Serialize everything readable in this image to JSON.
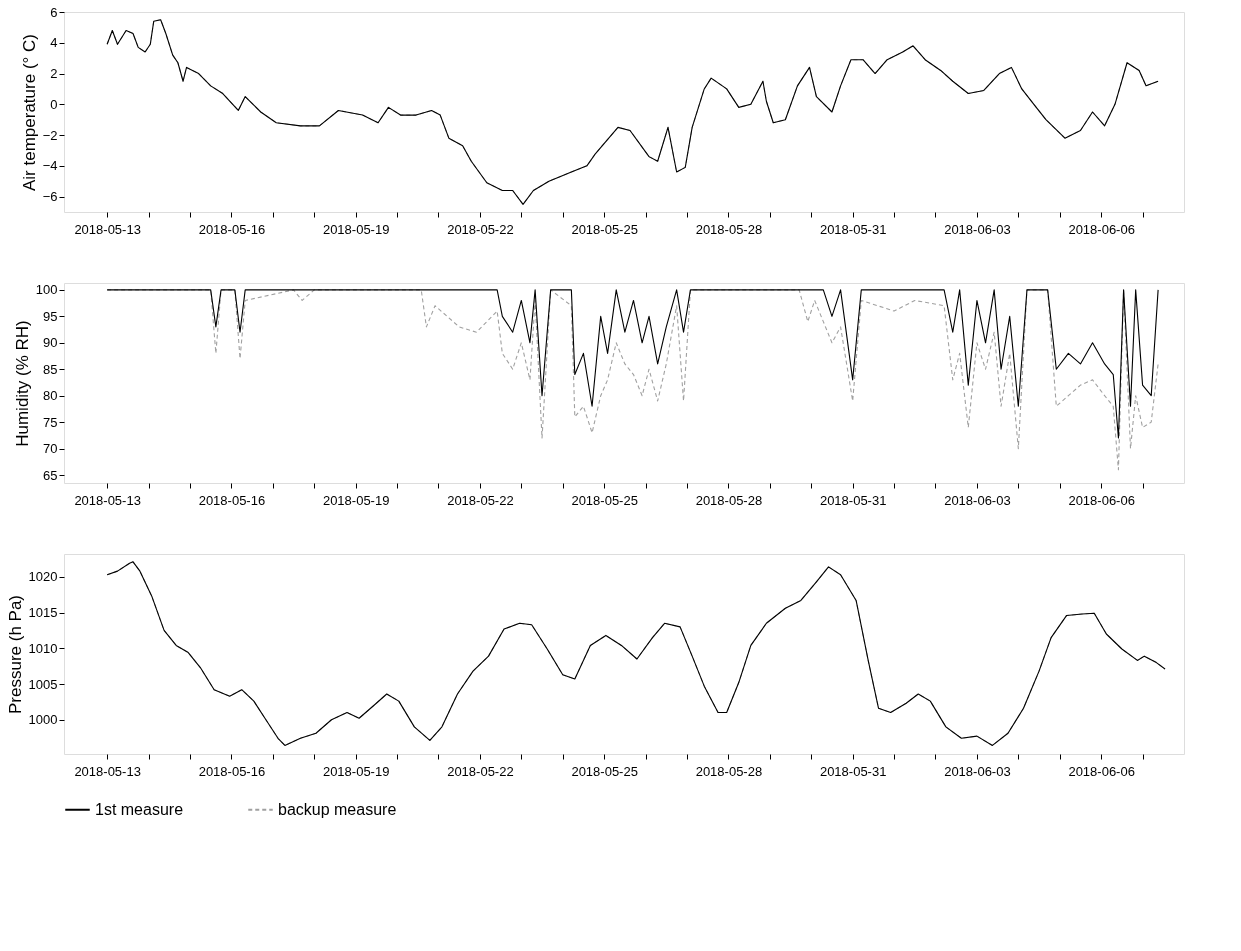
{
  "chart_data": [
    {
      "type": "line",
      "ylabel": "Air temperature (° C)",
      "grid": false,
      "legend": false,
      "x": [
        "2018-05-13T00:00",
        "2018-05-13T03:00",
        "2018-05-13T06:00",
        "2018-05-13T11:00",
        "2018-05-13T15:00",
        "2018-05-13T18:00",
        "2018-05-13T22:00",
        "2018-05-14T01:00",
        "2018-05-14T03:00",
        "2018-05-14T07:00",
        "2018-05-14T10:00",
        "2018-05-14T14:00",
        "2018-05-14T17:00",
        "2018-05-14T20:00",
        "2018-05-14T22:00",
        "2018-05-15T05:00",
        "2018-05-15T12:00",
        "2018-05-15T19:00",
        "2018-05-16T04:00",
        "2018-05-16T08:00",
        "2018-05-16T17:00",
        "2018-05-17T02:00",
        "2018-05-17T16:00",
        "2018-05-18T03:00",
        "2018-05-18T14:00",
        "2018-05-19T04:00",
        "2018-05-19T13:00",
        "2018-05-19T19:00",
        "2018-05-20T02:00",
        "2018-05-20T11:00",
        "2018-05-20T20:00",
        "2018-05-21T01:00",
        "2018-05-21T06:00",
        "2018-05-21T14:00",
        "2018-05-21T19:00",
        "2018-05-22T04:00",
        "2018-05-22T13:00",
        "2018-05-22T19:00",
        "2018-05-23T01:00",
        "2018-05-23T07:00",
        "2018-05-23T16:00",
        "2018-05-24T05:00",
        "2018-05-24T14:00",
        "2018-05-24T19:00",
        "2018-05-25T08:00",
        "2018-05-25T15:00",
        "2018-05-26T02:00",
        "2018-05-26T07:00",
        "2018-05-26T13:00",
        "2018-05-26T18:00",
        "2018-05-26T23:00",
        "2018-05-27T03:00",
        "2018-05-27T10:00",
        "2018-05-27T14:00",
        "2018-05-27T23:00",
        "2018-05-28T06:00",
        "2018-05-28T13:00",
        "2018-05-28T20:00",
        "2018-05-28T22:00",
        "2018-05-29T02:00",
        "2018-05-29T09:00",
        "2018-05-29T16:00",
        "2018-05-29T23:00",
        "2018-05-30T03:00",
        "2018-05-30T12:00",
        "2018-05-30T17:00",
        "2018-05-30T23:00",
        "2018-05-31T06:00",
        "2018-05-31T13:00",
        "2018-05-31T20:00",
        "2018-06-01T05:00",
        "2018-06-01T11:00",
        "2018-06-01T18:00",
        "2018-06-02T03:00",
        "2018-06-02T10:00",
        "2018-06-02T19:00",
        "2018-06-03T04:00",
        "2018-06-03T13:00",
        "2018-06-03T20:00",
        "2018-06-04T02:00",
        "2018-06-04T09:00",
        "2018-06-04T16:00",
        "2018-06-05T03:00",
        "2018-06-05T12:00",
        "2018-06-05T19:00",
        "2018-06-06T02:00",
        "2018-06-06T08:00",
        "2018-06-06T15:00",
        "2018-06-06T22:00",
        "2018-06-07T02:00",
        "2018-06-07T09:00"
      ],
      "series": [
        {
          "color": "#000000",
          "line_style": "solid",
          "values": [
            3.9,
            4.8,
            3.9,
            4.8,
            4.6,
            3.7,
            3.4,
            3.9,
            5.4,
            5.5,
            4.6,
            3.2,
            2.7,
            1.5,
            2.4,
            2.0,
            1.2,
            0.7,
            -0.4,
            0.5,
            -0.5,
            -1.2,
            -1.4,
            -1.4,
            -0.4,
            -0.7,
            -1.2,
            -0.2,
            -0.7,
            -0.7,
            -0.4,
            -0.7,
            -2.2,
            -2.7,
            -3.7,
            -5.1,
            -5.6,
            -5.6,
            -6.5,
            -5.6,
            -5.0,
            -4.4,
            -4.0,
            -3.2,
            -1.5,
            -1.7,
            -3.4,
            -3.7,
            -1.5,
            -4.4,
            -4.1,
            -1.5,
            1.0,
            1.7,
            1.0,
            -0.2,
            0.0,
            1.5,
            0.2,
            -1.2,
            -1.0,
            1.2,
            2.4,
            0.5,
            -0.5,
            1.2,
            2.9,
            2.9,
            2.0,
            2.9,
            3.4,
            3.8,
            2.9,
            2.2,
            1.5,
            0.7,
            0.9,
            2.0,
            2.4,
            1.0,
            0.0,
            -1.0,
            -2.2,
            -1.7,
            -0.5,
            -1.4,
            0.0,
            2.7,
            2.2,
            1.2,
            1.5
          ]
        },
        {
          "color": "#a0a0a0",
          "line_style": "dashed",
          "values": [
            3.9,
            4.8,
            3.9,
            4.8,
            4.6,
            3.7,
            3.4,
            3.9,
            5.4,
            5.5,
            4.6,
            3.2,
            2.7,
            1.5,
            2.4,
            2.0,
            1.2,
            0.7,
            -0.4,
            0.5,
            -0.5,
            -1.2,
            -1.4,
            -1.4,
            -0.4,
            -0.7,
            -1.2,
            -0.2,
            -0.7,
            -0.7,
            -0.4,
            -0.7,
            -2.2,
            -2.7,
            -3.7,
            -5.1,
            -5.6,
            -5.6,
            -6.5,
            -5.6,
            -5.0,
            -4.4,
            -4.0,
            -3.2,
            -1.5,
            -1.7,
            -3.4,
            -3.7,
            -1.5,
            -4.4,
            -4.1,
            -1.5,
            1.0,
            1.7,
            1.0,
            -0.2,
            0.0,
            1.5,
            0.2,
            -1.2,
            -1.0,
            1.2,
            2.4,
            0.5,
            -0.5,
            1.2,
            2.9,
            2.9,
            2.0,
            2.9,
            3.4,
            3.8,
            2.9,
            2.2,
            1.5,
            0.7,
            0.9,
            2.0,
            2.4,
            1.0,
            0.0,
            -1.0,
            -2.2,
            -1.7,
            -0.5,
            -1.4,
            0.0,
            2.7,
            2.2,
            1.2,
            1.5
          ]
        }
      ],
      "xlim": [
        "2018-05-11T23:00",
        "2018-06-08T00:00"
      ],
      "xticks": [
        "2018-05-13",
        {
          "value": "2018-05-14",
          "label": null
        },
        {
          "value": "2018-05-15",
          "label": null
        },
        "2018-05-16",
        {
          "value": "2018-05-17",
          "label": null
        },
        {
          "value": "2018-05-18",
          "label": null
        },
        "2018-05-19",
        {
          "value": "2018-05-20",
          "label": null
        },
        {
          "value": "2018-05-21",
          "label": null
        },
        "2018-05-22",
        {
          "value": "2018-05-23",
          "label": null
        },
        {
          "value": "2018-05-24",
          "label": null
        },
        "2018-05-25",
        {
          "value": "2018-05-26",
          "label": null
        },
        {
          "value": "2018-05-27",
          "label": null
        },
        "2018-05-28",
        {
          "value": "2018-05-29",
          "label": null
        },
        {
          "value": "2018-05-30",
          "label": null
        },
        "2018-05-31",
        {
          "value": "2018-06-01",
          "label": null
        },
        {
          "value": "2018-06-02",
          "label": null
        },
        "2018-06-03",
        {
          "value": "2018-06-04",
          "label": null
        },
        {
          "value": "2018-06-05",
          "label": null
        },
        "2018-06-06",
        {
          "value": "2018-06-07",
          "label": null
        }
      ],
      "ylim": [
        -7,
        6
      ],
      "yticks": [
        -6,
        -4,
        -2,
        0,
        2,
        4,
        6
      ]
    },
    {
      "type": "line",
      "ylabel": "Humidity (% RH)",
      "grid": false,
      "legend": false,
      "x": [
        "2018-05-13T00:00",
        "2018-05-15T12:00",
        "2018-05-15T15:00",
        "2018-05-15T18:00",
        "2018-05-16T02:00",
        "2018-05-16T05:00",
        "2018-05-16T08:00",
        "2018-05-17T12:00",
        "2018-05-17T17:00",
        "2018-05-18T00:00",
        "2018-05-20T14:00",
        "2018-05-20T17:00",
        "2018-05-20T22:00",
        "2018-05-21T12:00",
        "2018-05-21T22:00",
        "2018-05-22T10:00",
        "2018-05-22T13:00",
        "2018-05-22T19:00",
        "2018-05-23T00:00",
        "2018-05-23T05:00",
        "2018-05-23T08:00",
        "2018-05-23T12:00",
        "2018-05-23T17:00",
        "2018-05-24T05:00",
        "2018-05-24T07:00",
        "2018-05-24T12:00",
        "2018-05-24T17:00",
        "2018-05-24T22:00",
        "2018-05-25T02:00",
        "2018-05-25T07:00",
        "2018-05-25T12:00",
        "2018-05-25T17:00",
        "2018-05-25T22:00",
        "2018-05-26T02:00",
        "2018-05-26T07:00",
        "2018-05-26T12:00",
        "2018-05-26T18:00",
        "2018-05-26T22:00",
        "2018-05-27T02:00",
        "2018-05-29T17:00",
        "2018-05-29T22:00",
        "2018-05-30T02:00",
        "2018-05-30T07:00",
        "2018-05-30T12:00",
        "2018-05-30T17:00",
        "2018-05-31T00:00",
        "2018-05-31T05:00",
        "2018-06-01T00:00",
        "2018-06-01T12:00",
        "2018-06-02T05:00",
        "2018-06-02T10:00",
        "2018-06-02T14:00",
        "2018-06-02T19:00",
        "2018-06-03T00:00",
        "2018-06-03T05:00",
        "2018-06-03T10:00",
        "2018-06-03T14:00",
        "2018-06-03T19:00",
        "2018-06-04T00:00",
        "2018-06-04T05:00",
        "2018-06-04T17:00",
        "2018-06-04T22:00",
        "2018-06-05T05:00",
        "2018-06-05T12:00",
        "2018-06-05T19:00",
        "2018-06-06T02:00",
        "2018-06-06T07:00",
        "2018-06-06T10:00",
        "2018-06-06T13:00",
        "2018-06-06T17:00",
        "2018-06-06T20:00",
        "2018-06-07T00:00",
        "2018-06-07T05:00",
        "2018-06-07T09:00"
      ],
      "series": [
        {
          "color": "#000000",
          "line_style": "solid",
          "values": [
            100,
            100,
            93,
            100,
            100,
            92,
            100,
            100,
            100,
            100,
            100,
            100,
            100,
            100,
            100,
            100,
            95,
            92,
            98,
            90,
            100,
            80,
            100,
            100,
            84,
            88,
            78,
            95,
            88,
            100,
            92,
            98,
            90,
            95,
            86,
            93,
            100,
            92,
            100,
            100,
            100,
            100,
            100,
            95,
            100,
            83,
            100,
            100,
            100,
            100,
            92,
            100,
            82,
            98,
            90,
            100,
            85,
            95,
            78,
            100,
            100,
            85,
            88,
            86,
            90,
            86,
            84,
            72,
            100,
            78,
            100,
            82,
            80,
            100
          ]
        },
        {
          "color": "#a0a0a0",
          "line_style": "dashed",
          "values": [
            100,
            100,
            88,
            100,
            100,
            87,
            98,
            100,
            98,
            100,
            100,
            93,
            97,
            93,
            92,
            96,
            88,
            85,
            90,
            83,
            98,
            72,
            100,
            97,
            76,
            78,
            73,
            80,
            83,
            90,
            86,
            84,
            80,
            85,
            79,
            86,
            97,
            79,
            100,
            100,
            94,
            98,
            94,
            90,
            93,
            79,
            98,
            96,
            98,
            97,
            83,
            88,
            74,
            90,
            85,
            92,
            78,
            88,
            70,
            100,
            100,
            78,
            80,
            82,
            83,
            80,
            78,
            66,
            100,
            70,
            80,
            74,
            75,
            86
          ]
        }
      ],
      "xlim": [
        "2018-05-11T23:00",
        "2018-06-08T00:00"
      ],
      "xticks": [
        "2018-05-13",
        {
          "value": "2018-05-14",
          "label": null
        },
        {
          "value": "2018-05-15",
          "label": null
        },
        "2018-05-16",
        {
          "value": "2018-05-17",
          "label": null
        },
        {
          "value": "2018-05-18",
          "label": null
        },
        "2018-05-19",
        {
          "value": "2018-05-20",
          "label": null
        },
        {
          "value": "2018-05-21",
          "label": null
        },
        "2018-05-22",
        {
          "value": "2018-05-23",
          "label": null
        },
        {
          "value": "2018-05-24",
          "label": null
        },
        "2018-05-25",
        {
          "value": "2018-05-26",
          "label": null
        },
        {
          "value": "2018-05-27",
          "label": null
        },
        "2018-05-28",
        {
          "value": "2018-05-29",
          "label": null
        },
        {
          "value": "2018-05-30",
          "label": null
        },
        "2018-05-31",
        {
          "value": "2018-06-01",
          "label": null
        },
        {
          "value": "2018-06-02",
          "label": null
        },
        "2018-06-03",
        {
          "value": "2018-06-04",
          "label": null
        },
        {
          "value": "2018-06-05",
          "label": null
        },
        "2018-06-06",
        {
          "value": "2018-06-07",
          "label": null
        }
      ],
      "ylim": [
        63.5,
        101.3
      ],
      "yticks": [
        65,
        70,
        75,
        80,
        85,
        90,
        95,
        100
      ]
    },
    {
      "type": "line",
      "ylabel": "Pressure (h Pa)",
      "grid": false,
      "legend": "bottom",
      "x": [
        "2018-05-13T00:00",
        "2018-05-13T06:00",
        "2018-05-13T13:00",
        "2018-05-13T15:00",
        "2018-05-13T19:00",
        "2018-05-14T02:00",
        "2018-05-14T09:00",
        "2018-05-14T16:00",
        "2018-05-14T23:00",
        "2018-05-15T06:00",
        "2018-05-15T14:00",
        "2018-05-15T23:00",
        "2018-05-16T06:00",
        "2018-05-16T13:00",
        "2018-05-16T20:00",
        "2018-05-17T03:00",
        "2018-05-17T07:00",
        "2018-05-17T16:00",
        "2018-05-18T01:00",
        "2018-05-18T10:00",
        "2018-05-18T19:00",
        "2018-05-19T02:00",
        "2018-05-19T11:00",
        "2018-05-19T18:00",
        "2018-05-20T01:00",
        "2018-05-20T10:00",
        "2018-05-20T19:00",
        "2018-05-21T02:00",
        "2018-05-21T11:00",
        "2018-05-21T20:00",
        "2018-05-22T05:00",
        "2018-05-22T14:00",
        "2018-05-22T23:00",
        "2018-05-23T06:00",
        "2018-05-23T15:00",
        "2018-05-24T00:00",
        "2018-05-24T07:00",
        "2018-05-24T16:00",
        "2018-05-25T01:00",
        "2018-05-25T10:00",
        "2018-05-25T19:00",
        "2018-05-26T04:00",
        "2018-05-26T11:00",
        "2018-05-26T20:00",
        "2018-05-27T03:00",
        "2018-05-27T10:00",
        "2018-05-27T18:00",
        "2018-05-27T23:00",
        "2018-05-28T06:00",
        "2018-05-28T13:00",
        "2018-05-28T22:00",
        "2018-05-29T09:00",
        "2018-05-29T18:00",
        "2018-05-30T03:00",
        "2018-05-30T10:00",
        "2018-05-30T17:00",
        "2018-05-31T02:00",
        "2018-05-31T09:00",
        "2018-05-31T15:00",
        "2018-05-31T22:00",
        "2018-06-01T07:00",
        "2018-06-01T14:00",
        "2018-06-01T21:00",
        "2018-06-02T06:00",
        "2018-06-02T15:00",
        "2018-06-03T00:00",
        "2018-06-03T09:00",
        "2018-06-03T18:00",
        "2018-06-04T03:00",
        "2018-06-04T12:00",
        "2018-06-04T19:00",
        "2018-06-05T04:00",
        "2018-06-05T13:00",
        "2018-06-05T20:00",
        "2018-06-06T03:00",
        "2018-06-06T12:00",
        "2018-06-06T21:00",
        "2018-06-07T01:00",
        "2018-06-07T08:00",
        "2018-06-07T13:00"
      ],
      "series": [
        {
          "name": "1st measure",
          "color": "#000000",
          "line_style": "solid",
          "values": [
            1020.3,
            1020.8,
            1021.9,
            1022.1,
            1020.8,
            1017.2,
            1012.5,
            1010.4,
            1009.4,
            1007.3,
            1004.2,
            1003.3,
            1004.2,
            1002.6,
            1000.0,
            997.4,
            996.4,
            997.4,
            998.1,
            1000.0,
            1001.0,
            1000.2,
            1002.1,
            1003.6,
            1002.6,
            999.0,
            997.1,
            999.0,
            1003.6,
            1006.8,
            1008.9,
            1012.7,
            1013.5,
            1013.3,
            1009.9,
            1006.3,
            1005.7,
            1010.4,
            1011.8,
            1010.4,
            1008.5,
            1011.5,
            1013.5,
            1013.0,
            1008.9,
            1004.7,
            1001.0,
            1001.0,
            1005.2,
            1010.4,
            1013.5,
            1015.6,
            1016.7,
            1019.3,
            1021.4,
            1020.3,
            1016.7,
            1008.3,
            1001.6,
            1001.0,
            1002.3,
            1003.6,
            1002.6,
            999.0,
            997.4,
            997.7,
            996.4,
            998.1,
            1001.6,
            1006.8,
            1011.5,
            1014.6,
            1014.8,
            1014.9,
            1012.0,
            1009.9,
            1008.3,
            1008.9,
            1008.0,
            1007.1
          ]
        },
        {
          "name": "backup measure",
          "color": "#a0a0a0",
          "line_style": "dashed",
          "values": [
            1020.3,
            1020.8,
            1021.9,
            1022.1,
            1020.8,
            1017.2,
            1012.5,
            1010.4,
            1009.4,
            1007.3,
            1004.2,
            1003.3,
            1004.2,
            1002.6,
            1000.0,
            997.4,
            996.4,
            997.4,
            998.1,
            1000.0,
            1001.0,
            1000.2,
            1002.1,
            1003.6,
            1002.6,
            999.0,
            997.1,
            999.0,
            1003.6,
            1006.8,
            1008.9,
            1012.7,
            1013.5,
            1013.3,
            1009.9,
            1006.3,
            1005.7,
            1010.4,
            1011.8,
            1010.4,
            1008.5,
            1011.5,
            1013.5,
            1013.0,
            1008.9,
            1004.7,
            1001.0,
            1001.0,
            1005.2,
            1010.4,
            1013.5,
            1015.6,
            1016.7,
            1019.3,
            1021.4,
            1020.3,
            1016.7,
            1008.3,
            1001.6,
            1001.0,
            1002.3,
            1003.6,
            1002.6,
            999.0,
            997.4,
            997.7,
            996.4,
            998.1,
            1001.6,
            1006.8,
            1011.5,
            1014.6,
            1014.8,
            1014.9,
            1012.0,
            1009.9,
            1008.3,
            1008.9,
            1008.0,
            1007.1
          ]
        }
      ],
      "xlim": [
        "2018-05-11T23:00",
        "2018-06-08T00:00"
      ],
      "xticks": [
        "2018-05-13",
        {
          "value": "2018-05-14",
          "label": null
        },
        {
          "value": "2018-05-15",
          "label": null
        },
        "2018-05-16",
        {
          "value": "2018-05-17",
          "label": null
        },
        {
          "value": "2018-05-18",
          "label": null
        },
        "2018-05-19",
        {
          "value": "2018-05-20",
          "label": null
        },
        {
          "value": "2018-05-21",
          "label": null
        },
        "2018-05-22",
        {
          "value": "2018-05-23",
          "label": null
        },
        {
          "value": "2018-05-24",
          "label": null
        },
        "2018-05-25",
        {
          "value": "2018-05-26",
          "label": null
        },
        {
          "value": "2018-05-27",
          "label": null
        },
        "2018-05-28",
        {
          "value": "2018-05-29",
          "label": null
        },
        {
          "value": "2018-05-30",
          "label": null
        },
        "2018-05-31",
        {
          "value": "2018-06-01",
          "label": null
        },
        {
          "value": "2018-06-02",
          "label": null
        },
        "2018-06-03",
        {
          "value": "2018-06-04",
          "label": null
        },
        {
          "value": "2018-06-05",
          "label": null
        },
        "2018-06-06",
        {
          "value": "2018-06-07",
          "label": null
        }
      ],
      "ylim": [
        995.2,
        1023.2
      ],
      "yticks": [
        1000,
        1005,
        1010,
        1015,
        1020
      ]
    }
  ]
}
